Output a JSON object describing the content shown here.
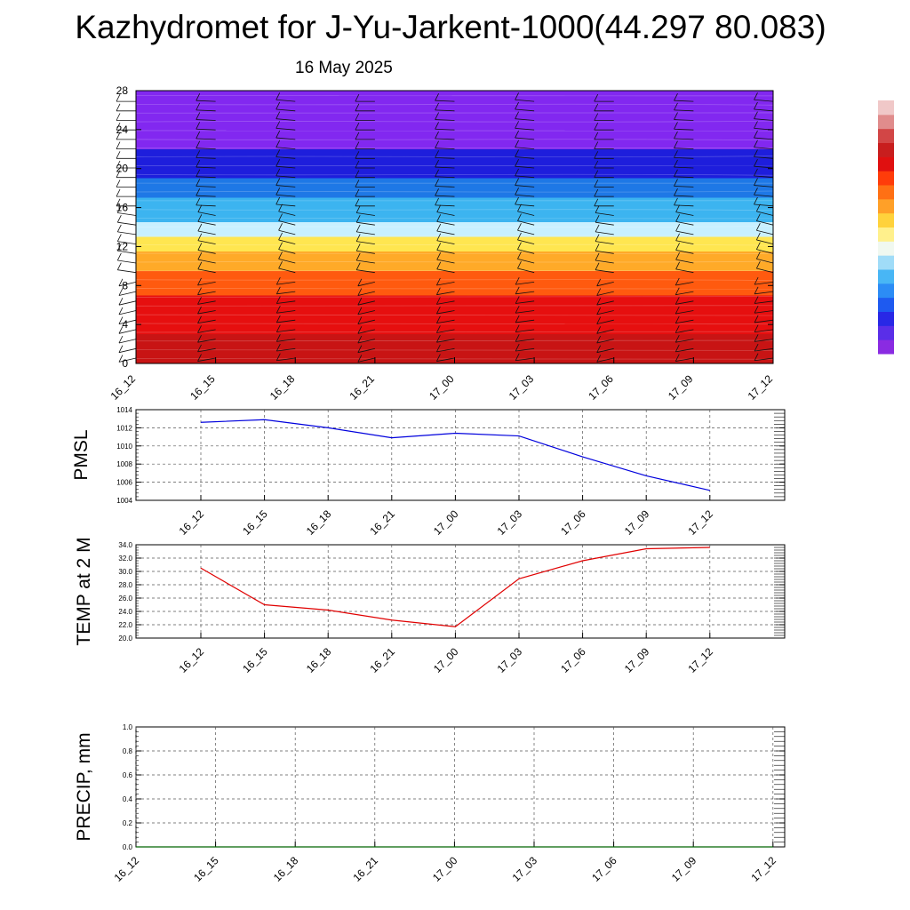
{
  "title": "Kazhydromet for J-Yu-Jarkent-1000(44.297 80.083)",
  "subtitle": "16 May 2025",
  "colors": {
    "pmsl_line": "#0000dd",
    "temp_line": "#e00000",
    "precip_line": "#006400",
    "grid": "#555555",
    "colorbar": [
      "#8a2be2",
      "#5a2ee8",
      "#2828e6",
      "#1e5af0",
      "#2c8cf5",
      "#48b6f5",
      "#a0dcf8",
      "#f0f8f0",
      "#fff08c",
      "#ffd23c",
      "#ffa028",
      "#ff7014",
      "#ff3c0a",
      "#e01010",
      "#c81e1e",
      "#d24646",
      "#e08c8c",
      "#f0c8c8"
    ]
  },
  "chart_data": [
    {
      "type": "heatmap",
      "title": "",
      "xlabel": "",
      "ylabel": "",
      "x_ticks": [
        "16_12",
        "16_15",
        "16_18",
        "16_21",
        "17_00",
        "17_03",
        "17_06",
        "17_09",
        "17_12"
      ],
      "y_ticks": [
        "0",
        "4",
        "8",
        "12",
        "16",
        "20",
        "24",
        "28"
      ],
      "ylim": [
        0,
        28
      ],
      "wind_barbs": true,
      "colorbar": "vertical, right",
      "bands": [
        {
          "from": 0,
          "to": 3,
          "color": "#c81414"
        },
        {
          "from": 3,
          "to": 7,
          "color": "#e60f0f"
        },
        {
          "from": 7,
          "to": 9.5,
          "color": "#ff5a0f"
        },
        {
          "from": 9.5,
          "to": 11.5,
          "color": "#ffaa28"
        },
        {
          "from": 11.5,
          "to": 13,
          "color": "#ffe650"
        },
        {
          "from": 13,
          "to": 14.5,
          "color": "#c8f0ff"
        },
        {
          "from": 14.5,
          "to": 17,
          "color": "#3cb4f0"
        },
        {
          "from": 17,
          "to": 19,
          "color": "#1e78e6"
        },
        {
          "from": 19,
          "to": 22,
          "color": "#1e1edc"
        },
        {
          "from": 22,
          "to": 28,
          "color": "#8228f0"
        }
      ]
    },
    {
      "type": "line",
      "title": "",
      "ylabel": "PMSL",
      "xlabel": "",
      "categories": [
        "16_12",
        "16_15",
        "16_18",
        "16_21",
        "17_00",
        "17_03",
        "17_06",
        "17_09",
        "17_12"
      ],
      "ylim": [
        1004,
        1014
      ],
      "y_ticks": [
        "1004",
        "1006",
        "1008",
        "1010",
        "1012",
        "1014"
      ],
      "series": [
        {
          "values": [
            1012.6,
            1012.9,
            1012.0,
            1010.9,
            1011.4,
            1011.1,
            1008.8,
            1006.7,
            1005.1
          ]
        }
      ]
    },
    {
      "type": "line",
      "title": "",
      "ylabel": "TEMP at 2 M",
      "xlabel": "",
      "categories": [
        "16_12",
        "16_15",
        "16_18",
        "16_21",
        "17_00",
        "17_03",
        "17_06",
        "17_09",
        "17_12"
      ],
      "ylim": [
        20,
        34
      ],
      "y_ticks": [
        "20.0",
        "22.0",
        "24.0",
        "26.0",
        "28.0",
        "30.0",
        "32.0",
        "34.0"
      ],
      "series": [
        {
          "values": [
            30.5,
            25.0,
            24.2,
            22.7,
            21.7,
            28.9,
            31.6,
            33.4,
            33.6
          ]
        }
      ]
    },
    {
      "type": "line",
      "title": "",
      "ylabel": "PRECIP, mm",
      "xlabel": "",
      "categories": [
        "16_12",
        "16_15",
        "16_18",
        "16_21",
        "17_00",
        "17_03",
        "17_06",
        "17_09",
        "17_12"
      ],
      "ylim": [
        0,
        1
      ],
      "y_ticks": [
        "0.0",
        "0.2",
        "0.4",
        "0.6",
        "0.8",
        "1.0"
      ],
      "series": [
        {
          "values": [
            0,
            0,
            0,
            0,
            0,
            0,
            0,
            0,
            0
          ]
        }
      ]
    }
  ]
}
